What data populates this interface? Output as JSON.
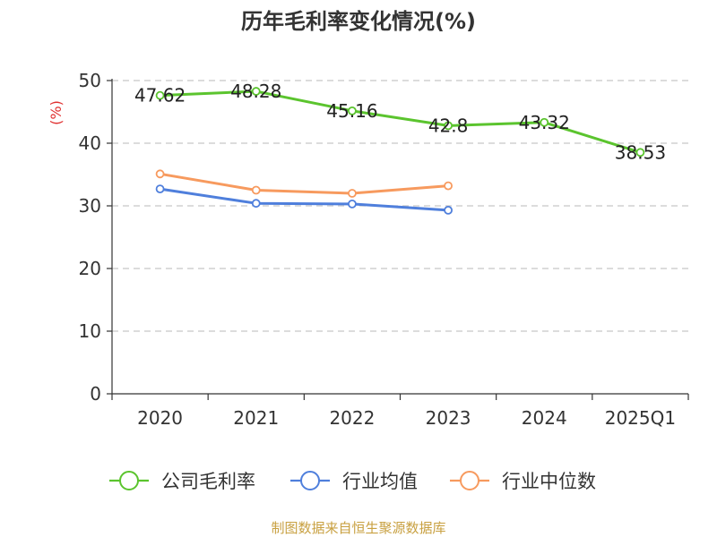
{
  "chart_data": {
    "type": "line",
    "title": "历年毛利率变化情况(%)",
    "ylabel": "(%)",
    "xlabel": "",
    "categories": [
      "2020",
      "2021",
      "2022",
      "2023",
      "2024",
      "2025Q1"
    ],
    "ylim": [
      0,
      50
    ],
    "yticks": [
      0,
      10,
      20,
      30,
      40,
      50
    ],
    "grid": true,
    "legend_position": "bottom",
    "series": [
      {
        "name": "公司毛利率",
        "color": "#5bc42e",
        "values": [
          47.62,
          48.28,
          45.16,
          42.8,
          43.32,
          38.53
        ],
        "labels": [
          "47.62",
          "48.28",
          "45.16",
          "42.8",
          "43.32",
          "38.53"
        ]
      },
      {
        "name": "行业均值",
        "color": "#4f7fdc",
        "values": [
          32.7,
          30.4,
          30.3,
          29.3,
          null,
          null
        ]
      },
      {
        "name": "行业中位数",
        "color": "#f79a5e",
        "values": [
          35.1,
          32.5,
          32.0,
          33.2,
          null,
          null
        ]
      }
    ]
  },
  "source": "制图数据来自恒生聚源数据库"
}
